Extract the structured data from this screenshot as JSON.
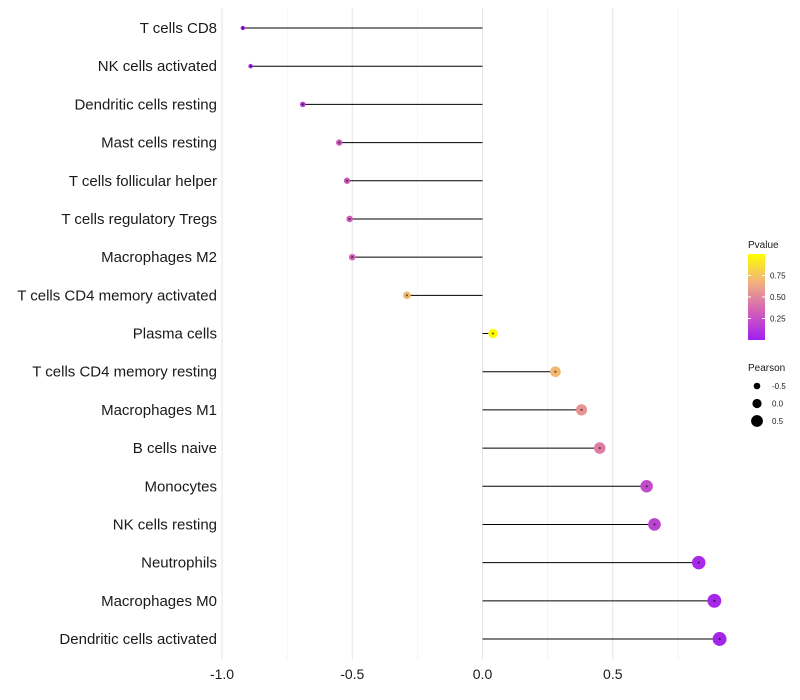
{
  "chart_data": {
    "type": "lollipop",
    "title": "",
    "xlabel": "",
    "ylabel": "",
    "xlim": [
      -1.0,
      0.95
    ],
    "xticks": [
      -1.0,
      -0.5,
      0.0,
      0.5
    ],
    "xtick_labels": [
      "-1.0",
      "-0.5",
      "0.0",
      "0.5"
    ],
    "grid": true,
    "baseline": 0.0,
    "categories": [
      "T cells CD8",
      "NK cells activated",
      "Dendritic cells resting",
      "Mast cells resting",
      "T cells follicular helper",
      "T cells regulatory  Tregs",
      "Macrophages M2",
      "T cells CD4 memory activated",
      "Plasma cells",
      "T cells CD4 memory resting",
      "Macrophages M1",
      "B cells naive",
      "Monocytes",
      "NK cells resting",
      "Neutrophils",
      "Macrophages M0",
      "Dendritic cells activated"
    ],
    "values": [
      -0.92,
      -0.89,
      -0.69,
      -0.55,
      -0.52,
      -0.51,
      -0.5,
      -0.29,
      0.04,
      0.28,
      0.38,
      0.45,
      0.63,
      0.66,
      0.83,
      0.89,
      0.91
    ],
    "pvalues": [
      0.02,
      0.05,
      0.15,
      0.3,
      0.3,
      0.32,
      0.33,
      0.7,
      0.98,
      0.7,
      0.55,
      0.45,
      0.22,
      0.18,
      0.05,
      0.04,
      0.03
    ],
    "color_legend": {
      "title": "Pvalue",
      "ticks": [
        "0.75",
        "0.50",
        "0.25"
      ],
      "tick_values": [
        0.75,
        0.5,
        0.25
      ],
      "range": [
        0.0,
        1.0
      ],
      "colors": [
        "#a020f0",
        "#d460b8",
        "#f0b080",
        "#ffff00"
      ]
    },
    "size_legend": {
      "title": "Pearson",
      "labels": [
        "-0.5",
        "0.0",
        "0.5"
      ],
      "values": [
        -0.5,
        0.0,
        0.5
      ]
    }
  }
}
